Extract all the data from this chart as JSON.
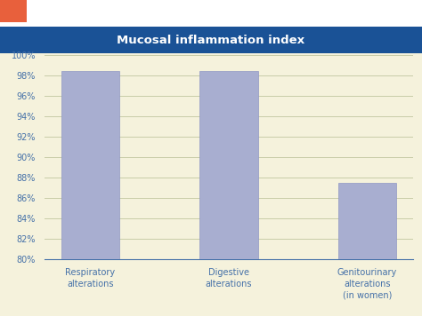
{
  "title": "Mucosal inflammation index",
  "title_bg_color": "#1a5296",
  "title_text_color": "#ffffff",
  "fig_bg_color": "#ffffff",
  "chart_bg_color": "#f5f2dc",
  "categories": [
    "Respiratory\nalterations",
    "Digestive\nalterations",
    "Genitourinary\nalterations\n(in women)"
  ],
  "values": [
    98.5,
    98.5,
    87.5
  ],
  "bar_color": "#a8aed0",
  "bar_edge_color": "#9098c4",
  "ylim": [
    80,
    100
  ],
  "yticks": [
    80,
    82,
    84,
    86,
    88,
    90,
    92,
    94,
    96,
    98,
    100
  ],
  "ytick_labels": [
    "80%",
    "82%",
    "84%",
    "86%",
    "88%",
    "90%",
    "92%",
    "94%",
    "96%",
    "98%",
    "100%"
  ],
  "grid_color": "#c8cca8",
  "tick_color": "#4470a8",
  "axis_label_color": "#4470a8",
  "orange_color": "#e8603c",
  "title_fontsize": 9.5,
  "tick_fontsize": 7,
  "label_fontsize": 7
}
